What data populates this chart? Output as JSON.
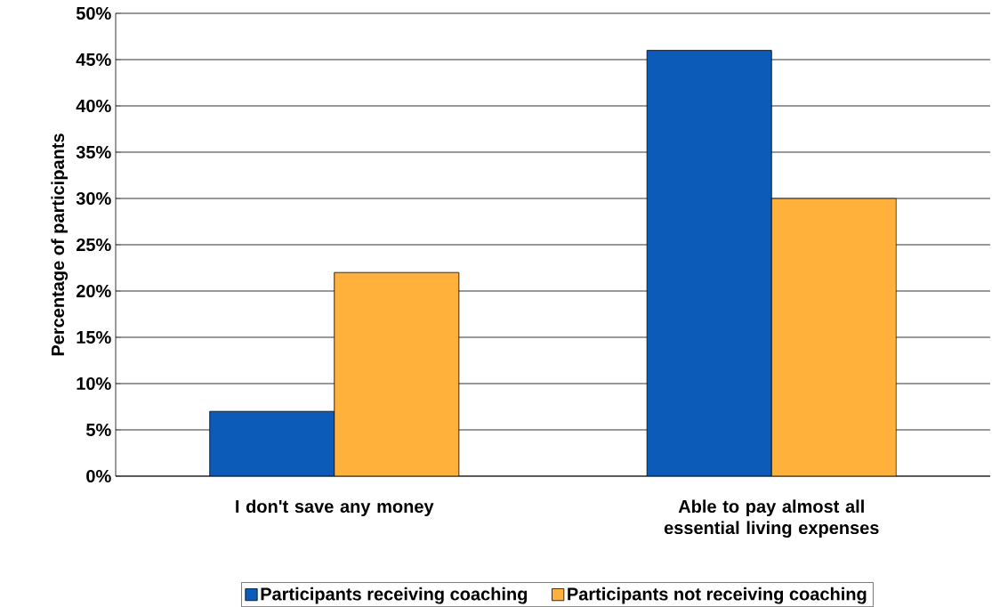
{
  "chart_data": {
    "type": "bar",
    "ylabel": "Percentage of participants",
    "categories": [
      "I don't save any money",
      "Able to pay almost all essential living expenses"
    ],
    "series": [
      {
        "name": "Participants receiving coaching",
        "color": "#0c5bb8",
        "values": [
          7,
          46
        ]
      },
      {
        "name": "Participants not receiving coaching",
        "color": "#ffb13b",
        "values": [
          22,
          30
        ]
      }
    ],
    "ylim": [
      0,
      50
    ],
    "yticks": [
      {
        "value": 0,
        "label": "0%"
      },
      {
        "value": 5,
        "label": "5%"
      },
      {
        "value": 10,
        "label": "10%"
      },
      {
        "value": 15,
        "label": "15%"
      },
      {
        "value": 20,
        "label": "20%"
      },
      {
        "value": 25,
        "label": "25%"
      },
      {
        "value": 30,
        "label": "30%"
      },
      {
        "value": 35,
        "label": "35%"
      },
      {
        "value": 40,
        "label": "40%"
      },
      {
        "value": 45,
        "label": "45%"
      },
      {
        "value": 50,
        "label": "50%"
      }
    ],
    "grid": "y",
    "legend": "bottom"
  }
}
